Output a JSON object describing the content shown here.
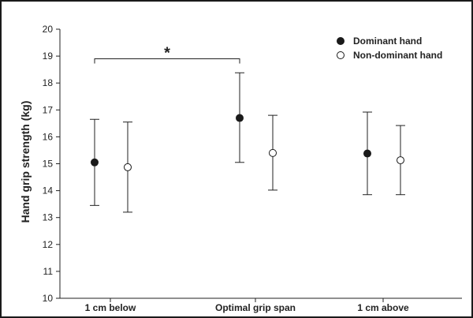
{
  "chart_data": {
    "type": "scatter",
    "title": "",
    "xlabel": "",
    "ylabel": "Hand grip strength (kg)",
    "ylim": [
      10,
      20
    ],
    "yticks": [
      10,
      11,
      12,
      13,
      14,
      15,
      16,
      17,
      18,
      19,
      20
    ],
    "categories": [
      "1 cm below",
      "Optimal grip span",
      "1 cm above"
    ],
    "legend_position": "top-right",
    "grid": false,
    "series": [
      {
        "name": "Dominant hand",
        "marker": "filled-circle",
        "color": "#1a1a1a",
        "values": [
          15.05,
          16.7,
          15.38
        ],
        "error_low": [
          13.45,
          15.05,
          13.85
        ],
        "error_high": [
          16.65,
          18.38,
          16.92
        ]
      },
      {
        "name": "Non-dominant hand",
        "marker": "open-circle",
        "color": "#1a1a1a",
        "values": [
          14.87,
          15.4,
          15.13
        ],
        "error_low": [
          13.2,
          14.02,
          13.85
        ],
        "error_high": [
          16.55,
          16.8,
          16.42
        ]
      }
    ],
    "annotations": [
      {
        "text": "*",
        "from_category": 0,
        "to_category": 1,
        "series": 0,
        "level": 18.9
      }
    ]
  }
}
